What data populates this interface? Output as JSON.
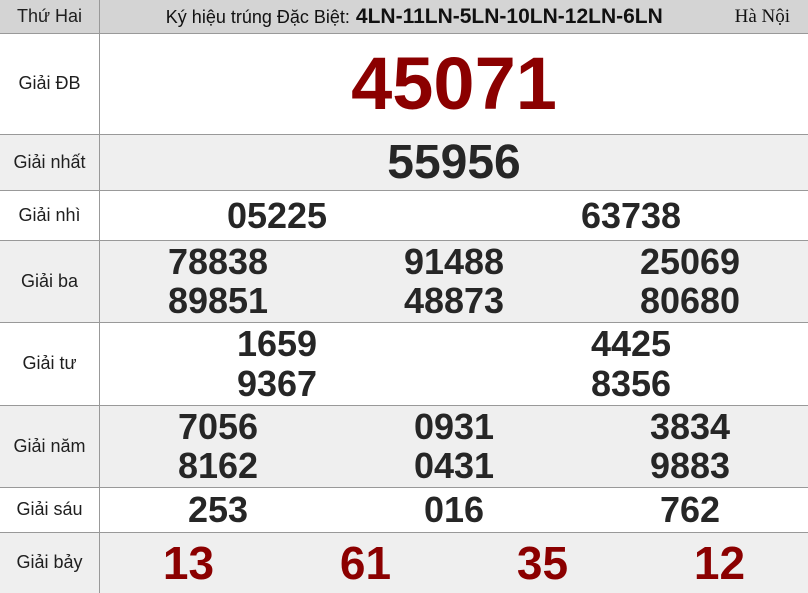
{
  "colors": {
    "accent_red": "#8b0000",
    "number_black": "#262626",
    "header_bg": "#d4d4d4",
    "row_gray": "#efefef",
    "row_white": "#ffffff",
    "border": "#999999",
    "label_text": "#1f1f1f"
  },
  "header": {
    "day": "Thứ Hai",
    "symbol_label": "Ký hiệu trúng Đặc Biệt:",
    "symbol_value": "4LN-11LN-5LN-10LN-12LN-6LN",
    "region": "Hà Nội"
  },
  "prizes": [
    {
      "key": "db",
      "label": "Giải ĐB",
      "rows": [
        [
          "45071"
        ]
      ]
    },
    {
      "key": "nhat",
      "label": "Giải nhất",
      "rows": [
        [
          "55956"
        ]
      ]
    },
    {
      "key": "nhi",
      "label": "Giải nhì",
      "rows": [
        [
          "05225",
          "63738"
        ]
      ]
    },
    {
      "key": "ba",
      "label": "Giải ba",
      "rows": [
        [
          "78838",
          "91488",
          "25069"
        ],
        [
          "89851",
          "48873",
          "80680"
        ]
      ]
    },
    {
      "key": "tu",
      "label": "Giải tư",
      "rows": [
        [
          "1659",
          "4425"
        ],
        [
          "9367",
          "8356"
        ]
      ]
    },
    {
      "key": "nam",
      "label": "Giải năm",
      "rows": [
        [
          "7056",
          "0931",
          "3834"
        ],
        [
          "8162",
          "0431",
          "9883"
        ]
      ]
    },
    {
      "key": "sau",
      "label": "Giải sáu",
      "rows": [
        [
          "253",
          "016",
          "762"
        ]
      ]
    },
    {
      "key": "bay",
      "label": "Giải bảy",
      "rows": [
        [
          "13",
          "61",
          "35",
          "12"
        ]
      ]
    }
  ]
}
